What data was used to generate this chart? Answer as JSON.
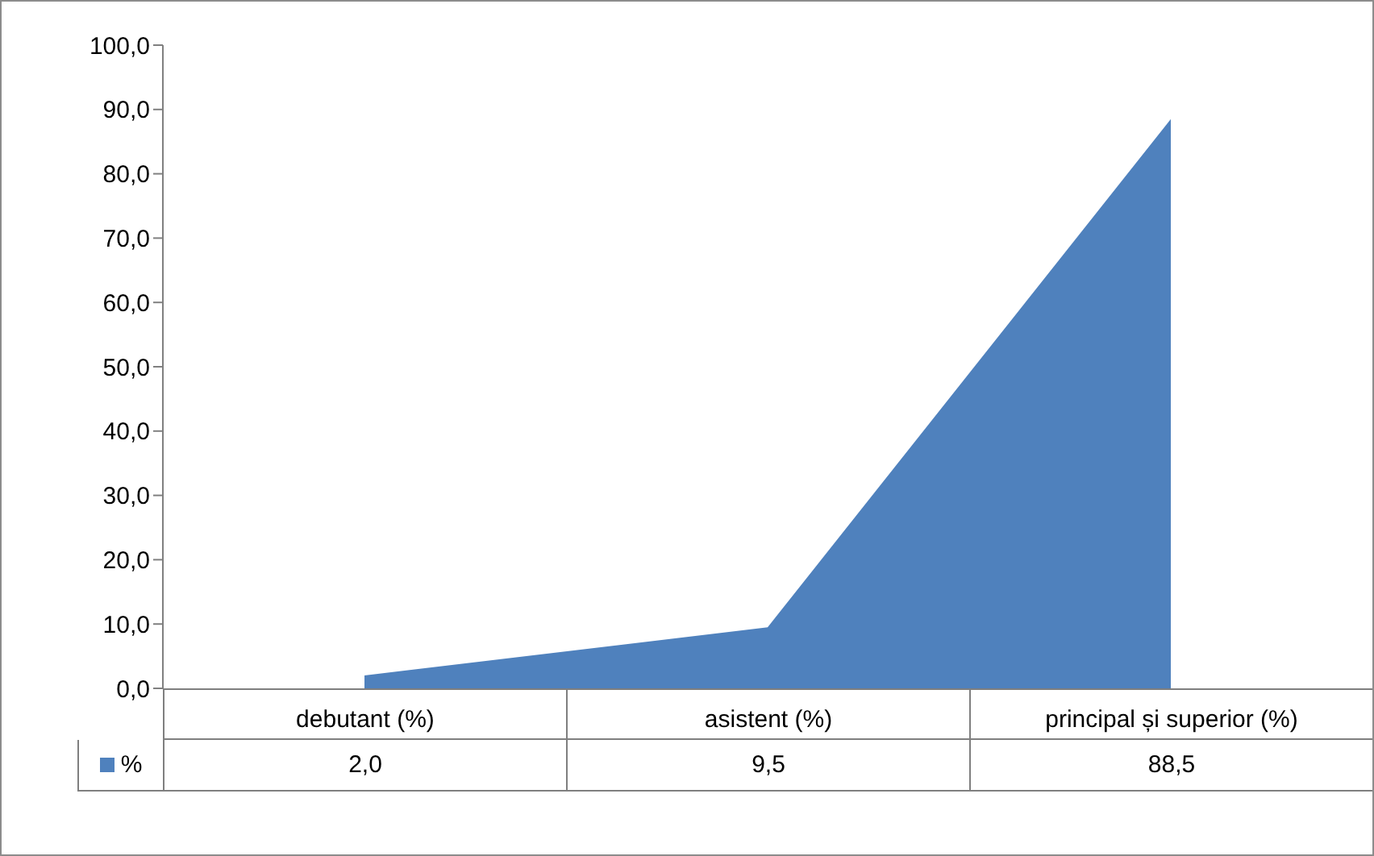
{
  "chart_data": {
    "type": "area",
    "categories": [
      "debutant (%)",
      "asistent (%)",
      "principal și superior (%)"
    ],
    "series": [
      {
        "name": "%",
        "color": "#4f81bd",
        "values": [
          2.0,
          9.5,
          88.5
        ],
        "value_labels": [
          "2,0",
          "9,5",
          "88,5"
        ]
      }
    ],
    "ylim": [
      0,
      100
    ],
    "yticks": [
      {
        "value": 0,
        "label": "0,0"
      },
      {
        "value": 10,
        "label": "10,0"
      },
      {
        "value": 20,
        "label": "20,0"
      },
      {
        "value": 30,
        "label": "30,0"
      },
      {
        "value": 40,
        "label": "40,0"
      },
      {
        "value": 50,
        "label": "50,0"
      },
      {
        "value": 60,
        "label": "60,0"
      },
      {
        "value": 70,
        "label": "70,0"
      },
      {
        "value": 80,
        "label": "80,0"
      },
      {
        "value": 90,
        "label": "90,0"
      },
      {
        "value": 100,
        "label": "100,0"
      }
    ]
  }
}
